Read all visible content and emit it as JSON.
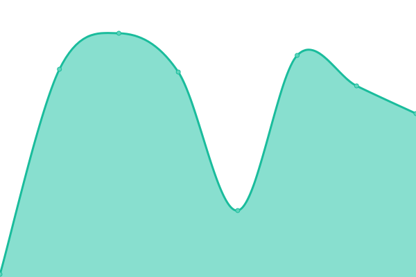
{
  "chart_data": {
    "type": "area",
    "x": [
      1,
      2,
      3,
      4,
      5,
      6,
      7,
      8
    ],
    "series": [
      {
        "values": [
          1,
          75,
          88,
          74,
          24,
          80,
          69,
          59
        ]
      }
    ],
    "ylim": [
      0,
      100
    ],
    "grid": false,
    "axes_visible": false,
    "smooth": true,
    "colors": {
      "line": "#1abc9c",
      "fill": "#88dfcf",
      "point_fill": "#5fd3bb"
    }
  }
}
